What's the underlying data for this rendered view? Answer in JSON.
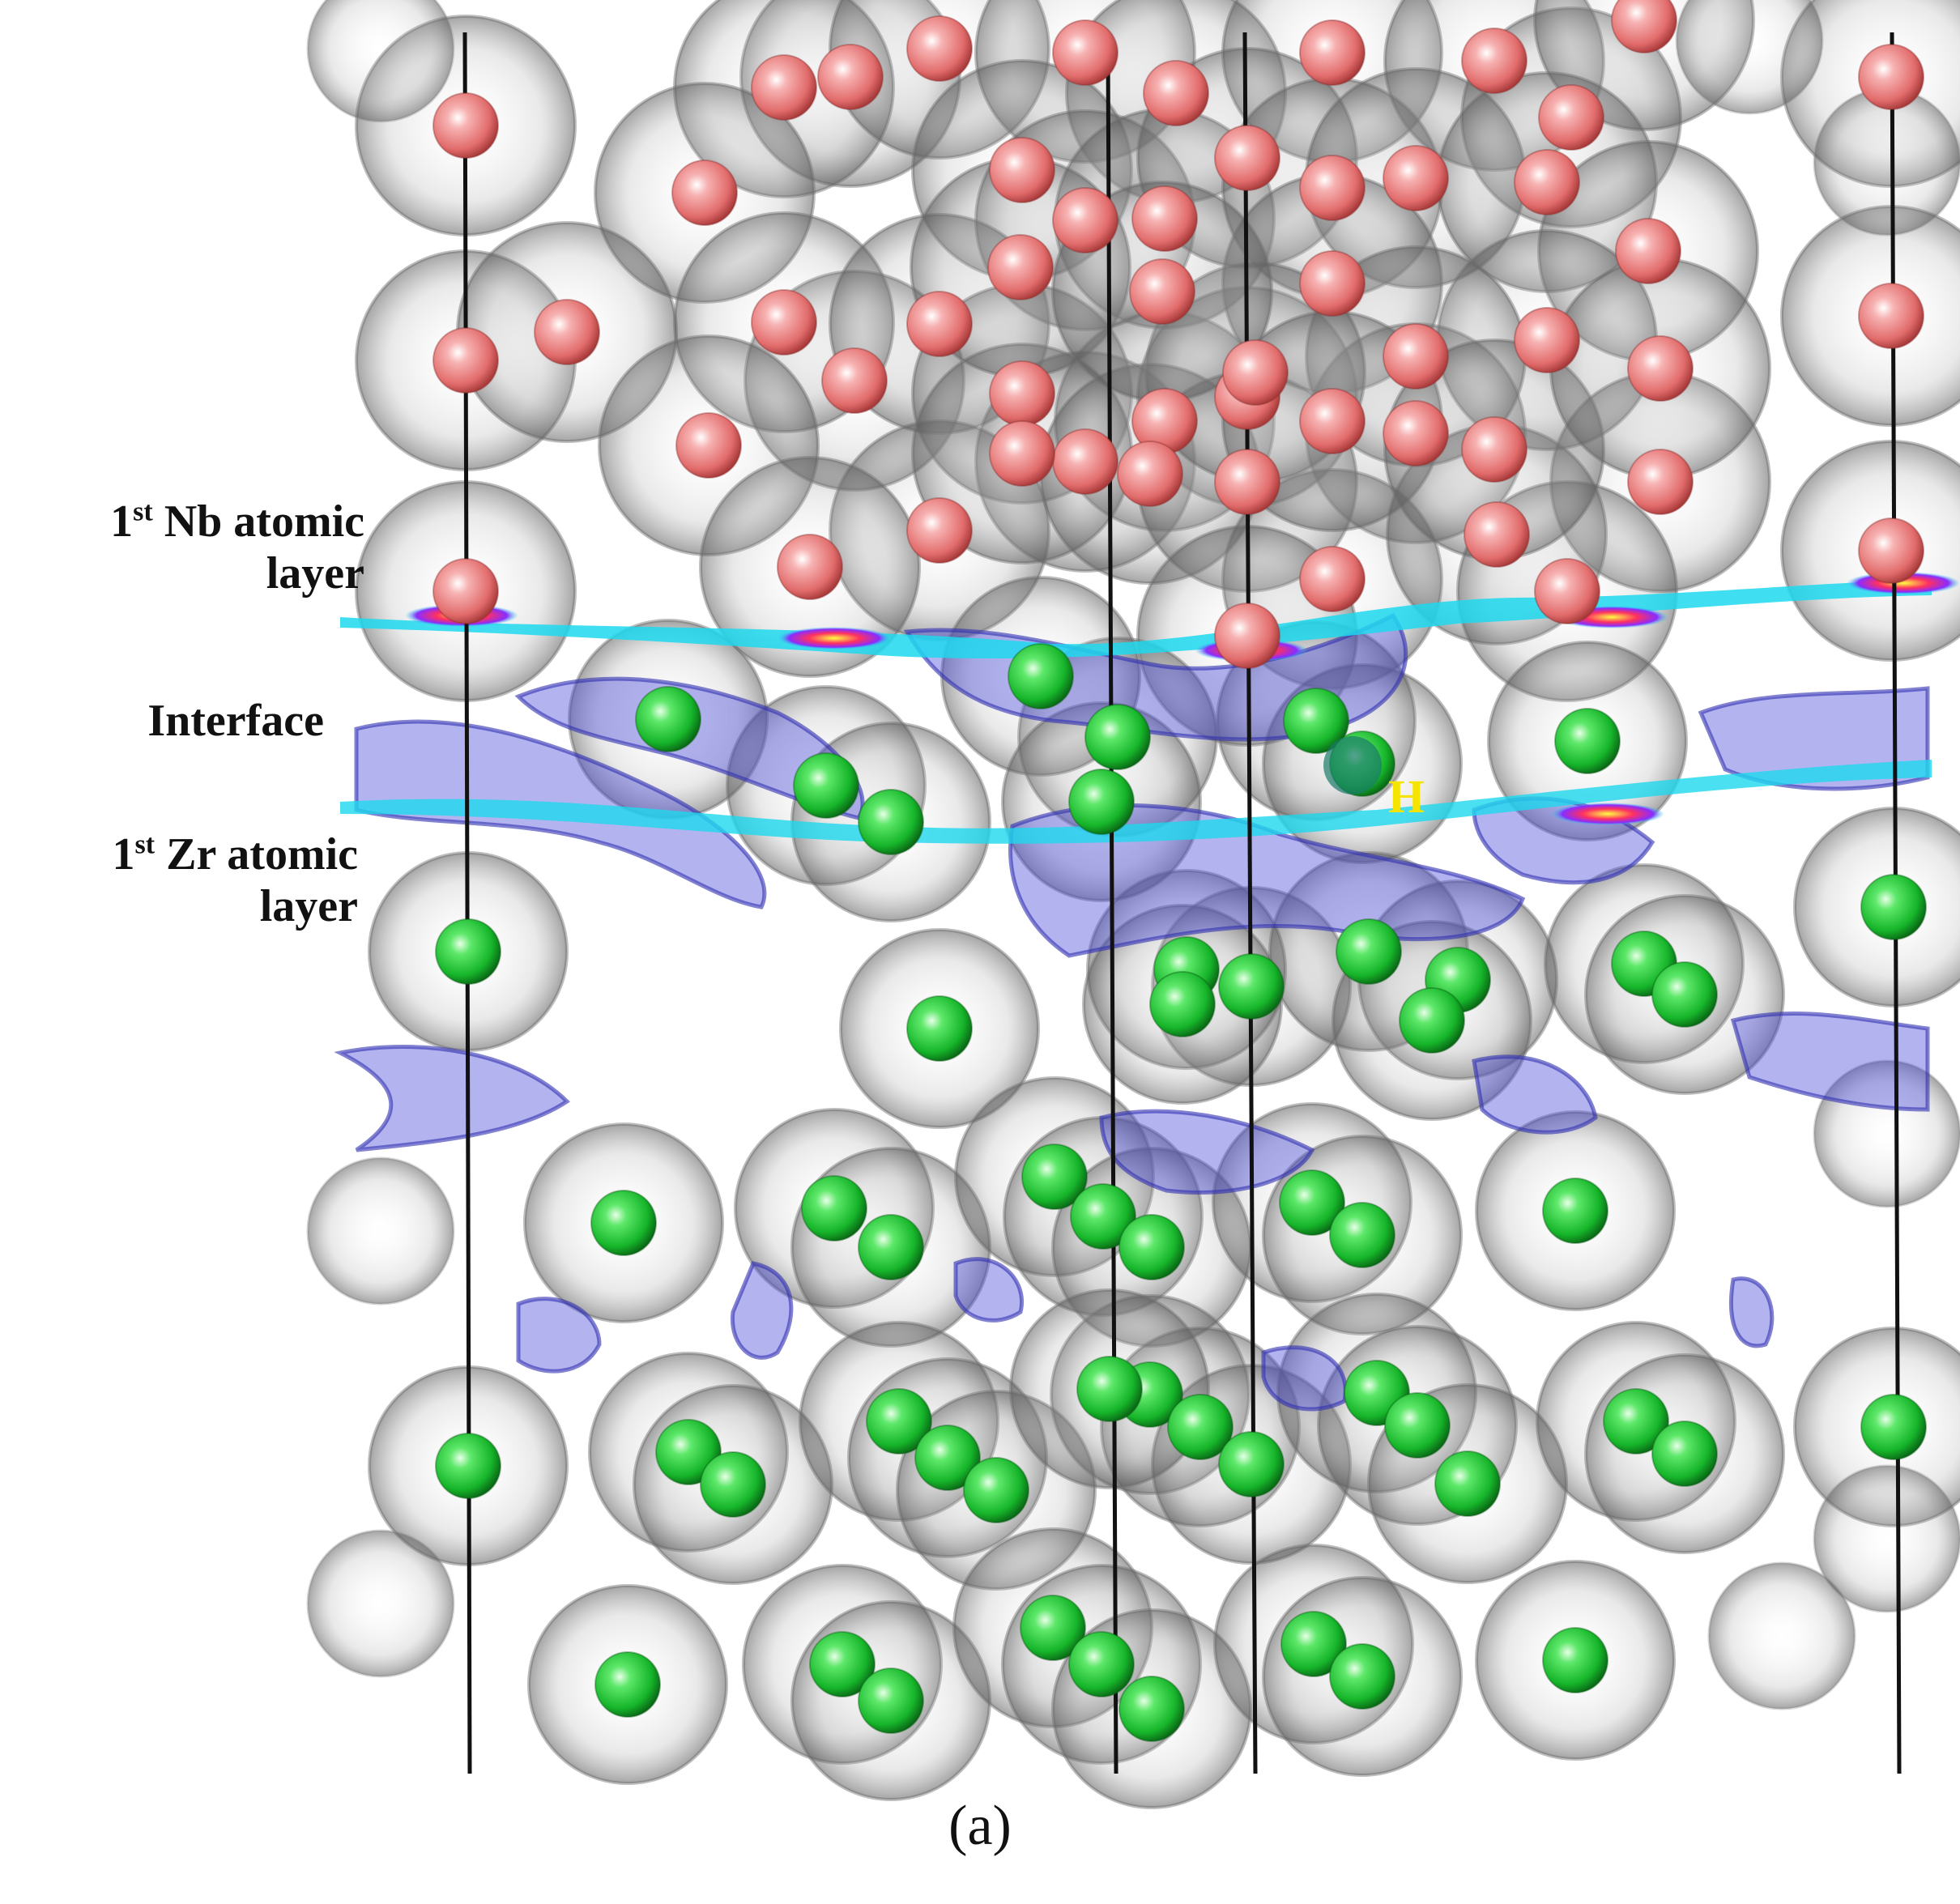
{
  "labels": {
    "nb_layer_prefix": "1",
    "nb_layer_sup": "st",
    "nb_layer_line1_rest": " Nb atomic",
    "nb_layer_line2": "layer",
    "interface": "Interface",
    "zr_layer_prefix": "1",
    "zr_layer_sup": "st",
    "zr_layer_line1_rest": " Zr atomic",
    "zr_layer_line2": "layer",
    "hydrogen": "H"
  },
  "caption": "(a)",
  "colors": {
    "nb_atom": "#e97a7a",
    "zr_atom": "#19c230",
    "charge_density_gray": "#7a7a7a",
    "isosurface_blue": "#4a4ad8",
    "interface_plane": "#1ed8ee",
    "h_label": "#f5e400"
  }
}
